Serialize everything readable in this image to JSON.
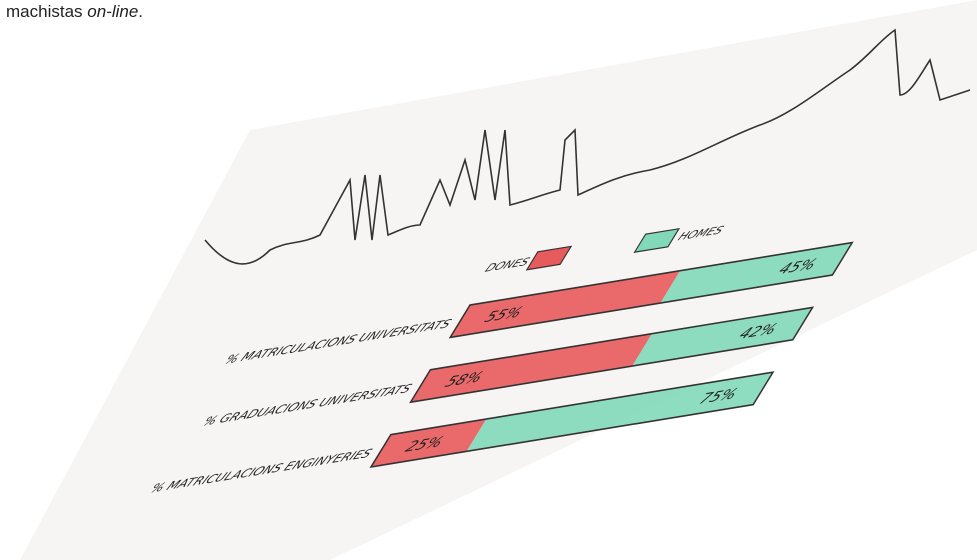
{
  "caption": {
    "text": "machistas ",
    "emphasis": "on-line",
    "end": "."
  },
  "chart_data": {
    "type": "bar",
    "stacked": true,
    "orientation": "horizontal",
    "categories": [
      "% MATRICULACIONS UNIVERSITATS",
      "% GRADUACIONS UNIVERSITATS",
      "% MATRICULACIONS ENGINYERIES"
    ],
    "xlim": [
      0,
      100
    ],
    "series": [
      {
        "name": "DONES",
        "color": "#e85b5d",
        "values": [
          55,
          58,
          25
        ],
        "value_labels": [
          "55%",
          "58%",
          "25%"
        ]
      },
      {
        "name": "HOMES",
        "color": "#82d9b9",
        "values": [
          45,
          42,
          75
        ],
        "value_labels": [
          "45%",
          "42%",
          "75%"
        ]
      }
    ]
  }
}
